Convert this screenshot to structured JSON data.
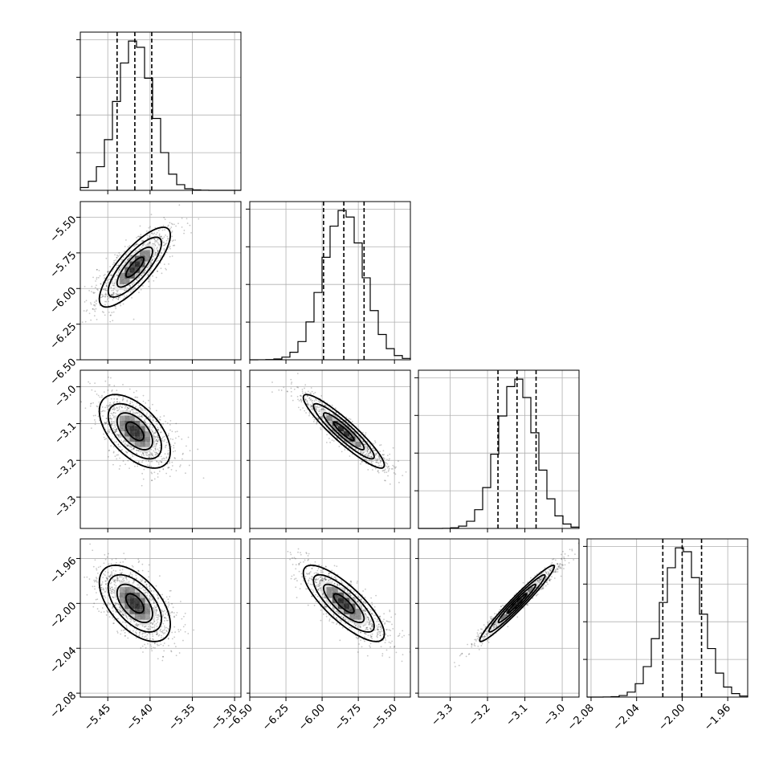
{
  "chart_data": {
    "type": "corner",
    "parameters": [
      {
        "ticks": [
          -5.45,
          -5.4,
          -5.35,
          -5.3
        ],
        "tick_labels": [
          "−5.45",
          "−5.40",
          "−5.35",
          "−5.30"
        ],
        "range": [
          -5.4825,
          -5.2925
        ],
        "median": -5.418,
        "q16": -5.439,
        "q84": -5.398,
        "sigma": 0.021
      },
      {
        "ticks": [
          -6.5,
          -6.25,
          -6.0,
          -5.75,
          -5.5
        ],
        "tick_labels": [
          "−6.50",
          "−6.25",
          "−6.00",
          "−5.75",
          "−5.50"
        ],
        "range": [
          -6.5,
          -5.39
        ],
        "median": -5.85,
        "q16": -5.99,
        "q84": -5.71,
        "sigma": 0.14
      },
      {
        "ticks": [
          -3.3,
          -3.2,
          -3.1,
          -3.0
        ],
        "tick_labels": [
          "−3.3",
          "−3.2",
          "−3.1",
          "−3.0"
        ],
        "range": [
          -3.385,
          -2.955
        ],
        "median": -3.121,
        "q16": -3.172,
        "q84": -3.07,
        "sigma": 0.05
      },
      {
        "ticks": [
          -2.08,
          -2.04,
          -2.0,
          -1.96
        ],
        "tick_labels": [
          "−2.08",
          "−2.04",
          "−2.00",
          "−1.96"
        ],
        "range": [
          -2.0835,
          -1.9425
        ],
        "median": -2.0,
        "q16": -2.017,
        "q84": -1.983,
        "sigma": 0.017
      }
    ],
    "correlations": [
      [
        1,
        0.8,
        -0.55,
        -0.55
      ],
      [
        0.8,
        1,
        -0.92,
        -0.8
      ],
      [
        -0.55,
        -0.92,
        1,
        0.97
      ],
      [
        -0.55,
        -0.8,
        0.97,
        1
      ]
    ],
    "histogram_bins": 20,
    "quantiles": [
      0.16,
      0.5,
      0.84
    ],
    "grid": true
  }
}
